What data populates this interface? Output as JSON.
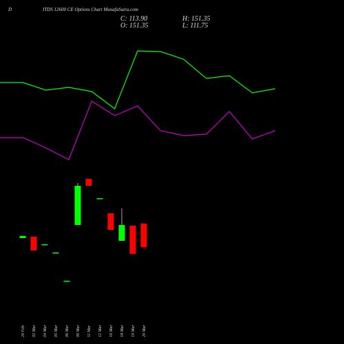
{
  "header": {
    "symbol": "D",
    "title": "ITDS 12600 CE Options Chart MunafaSutra.com",
    "close": "C: 113.90",
    "open": "O: 151.35",
    "high": "H: 151.35",
    "low": "L: 111.75"
  },
  "chart_data": [
    {
      "type": "line",
      "ylim": [
        0,
        250
      ],
      "series": [
        {
          "color": "#00ff00",
          "values": [
            130,
            130,
            119,
            123,
            117,
            92,
            176,
            175,
            164,
            136,
            140,
            115,
            121
          ]
        },
        {
          "color": "#cc00cc",
          "values": [
            50,
            50,
            35,
            18,
            103,
            82,
            96,
            60,
            53,
            55,
            88,
            48,
            60
          ]
        }
      ]
    },
    {
      "type": "candlestick",
      "ylim": [
        46.9,
        233.9
      ],
      "up_color": "#00ff00",
      "down_color": "#ff0000",
      "categories": [
        "26 Feb",
        "02 Mar",
        "04 Mar",
        "05 Mar",
        "06 Mar",
        "09 Mar",
        "11 Mar",
        "12 Mar",
        "16 Mar",
        "18 Mar",
        "19 Mar",
        "20 Mar"
      ],
      "open": [
        128.25,
        130.45,
        118.35,
        105.15,
        60.05,
        149.15,
        222.85,
        192.05,
        167.85,
        123.85,
        148.05,
        151.35
      ],
      "high": [
        131.55,
        130.45,
        118.35,
        105.15,
        60.05,
        216.0,
        222.85,
        192.05,
        167.85,
        175.55,
        148.05,
        151.35
      ],
      "low": [
        128.25,
        108.45,
        118.35,
        105.15,
        60.05,
        149.15,
        211.85,
        192.05,
        141.45,
        123.85,
        102.95,
        111.75
      ],
      "close": [
        131.55,
        108.45,
        118.35,
        105.15,
        60.05,
        211.85,
        211.85,
        192.05,
        141.45,
        149.15,
        102.95,
        113.9
      ]
    }
  ]
}
